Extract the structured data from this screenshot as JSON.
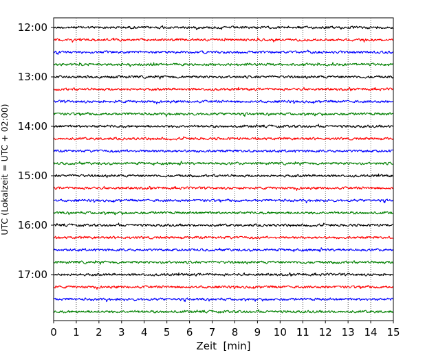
{
  "chart_data": {
    "type": "line",
    "xlabel": "Zeit  [min]",
    "ylabel": "UTC (Lokalzeit = UTC + 02:00)",
    "xlim": [
      0,
      15
    ],
    "x_ticks": [
      "0",
      "1",
      "2",
      "3",
      "4",
      "5",
      "6",
      "7",
      "8",
      "9",
      "10",
      "11",
      "12",
      "13",
      "14",
      "15"
    ],
    "y_tick_labels": [
      "12:00",
      "13:00",
      "14:00",
      "15:00",
      "16:00",
      "17:00"
    ],
    "grid": "vertical-dotted",
    "legend": "none",
    "trace_interval_min": 15,
    "start_time": "12:00",
    "end_time": "17:45",
    "trace_count": 24,
    "colors": [
      "#000000",
      "#ff0000",
      "#0000ff",
      "#008000"
    ]
  }
}
